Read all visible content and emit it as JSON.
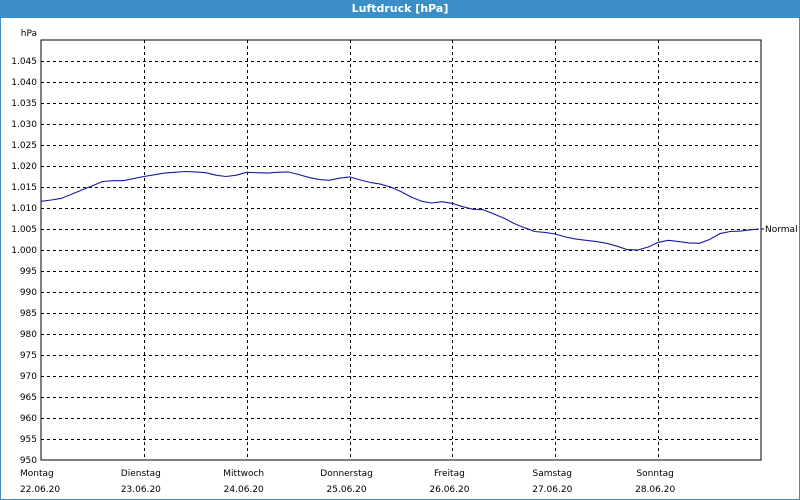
{
  "window": {
    "title": "Luftdruck [hPa]"
  },
  "chart_data": {
    "type": "line",
    "title": "Luftdruck [hPa]",
    "ylabel": "hPa",
    "xlabel": "",
    "ylim": [
      950,
      1050
    ],
    "yticks": [
      950,
      955,
      960,
      965,
      970,
      975,
      980,
      985,
      990,
      995,
      1000,
      1005,
      1010,
      1015,
      1020,
      1025,
      1030,
      1035,
      1040,
      1045
    ],
    "ytick_labels": [
      "950",
      "955",
      "960",
      "965",
      "970",
      "975",
      "980",
      "985",
      "990",
      "995",
      "1.000",
      "1.005",
      "1.010",
      "1.015",
      "1.020",
      "1.025",
      "1.030",
      "1.035",
      "1.040",
      "1.045"
    ],
    "xlim": [
      0,
      7
    ],
    "x_ticks": [
      {
        "day": "Montag",
        "date": "22.06.20"
      },
      {
        "day": "Dienstag",
        "date": "23.06.20"
      },
      {
        "day": "Mittwoch",
        "date": "24.06.20"
      },
      {
        "day": "Donnerstag",
        "date": "25.06.20"
      },
      {
        "day": "Freitag",
        "date": "26.06.20"
      },
      {
        "day": "Samstag",
        "date": "27.06.20"
      },
      {
        "day": "Sonntag",
        "date": "28.06.20"
      }
    ],
    "grid": true,
    "line_color": "#1a1aa0",
    "series": [
      {
        "name": "",
        "x": [
          0.0,
          0.1,
          0.2,
          0.3,
          0.4,
          0.5,
          0.6,
          0.7,
          0.8,
          0.9,
          1.0,
          1.1,
          1.2,
          1.3,
          1.4,
          1.5,
          1.6,
          1.7,
          1.8,
          1.9,
          2.0,
          2.1,
          2.2,
          2.3,
          2.4,
          2.5,
          2.6,
          2.7,
          2.8,
          2.9,
          3.0,
          3.1,
          3.2,
          3.3,
          3.4,
          3.5,
          3.6,
          3.7,
          3.8,
          3.9,
          4.0,
          4.1,
          4.2,
          4.3,
          4.4,
          4.5,
          4.6,
          4.7,
          4.8,
          4.9,
          5.0,
          5.1,
          5.2,
          5.3,
          5.4,
          5.5,
          5.6,
          5.7,
          5.8,
          5.9,
          6.0,
          6.1,
          6.2,
          6.3,
          6.4,
          6.5,
          6.6,
          6.7,
          6.8,
          6.9,
          6.98
        ],
        "y": [
          1011.6,
          1011.9,
          1012.3,
          1013.3,
          1014.3,
          1015.3,
          1016.3,
          1016.5,
          1016.5,
          1017.0,
          1017.5,
          1017.9,
          1018.3,
          1018.5,
          1018.7,
          1018.6,
          1018.4,
          1017.8,
          1017.5,
          1017.8,
          1018.5,
          1018.4,
          1018.3,
          1018.5,
          1018.6,
          1018.0,
          1017.3,
          1016.8,
          1016.6,
          1017.1,
          1017.4,
          1016.7,
          1016.1,
          1015.7,
          1015.0,
          1013.9,
          1012.6,
          1011.6,
          1011.2,
          1011.5,
          1011.1,
          1010.3,
          1009.7,
          1009.6,
          1008.6,
          1007.6,
          1006.3,
          1005.3,
          1004.4,
          1004.2,
          1003.8,
          1003.1,
          1002.6,
          1002.3,
          1002.0,
          1001.6,
          1000.9,
          1000.1,
          1000.0,
          1000.7,
          1001.8,
          1002.3,
          1002.0,
          1001.7,
          1001.6,
          1002.5,
          1003.9,
          1004.4,
          1004.5,
          1004.8,
          1005.0
        ]
      }
    ],
    "annotations": [
      "Normal"
    ]
  }
}
